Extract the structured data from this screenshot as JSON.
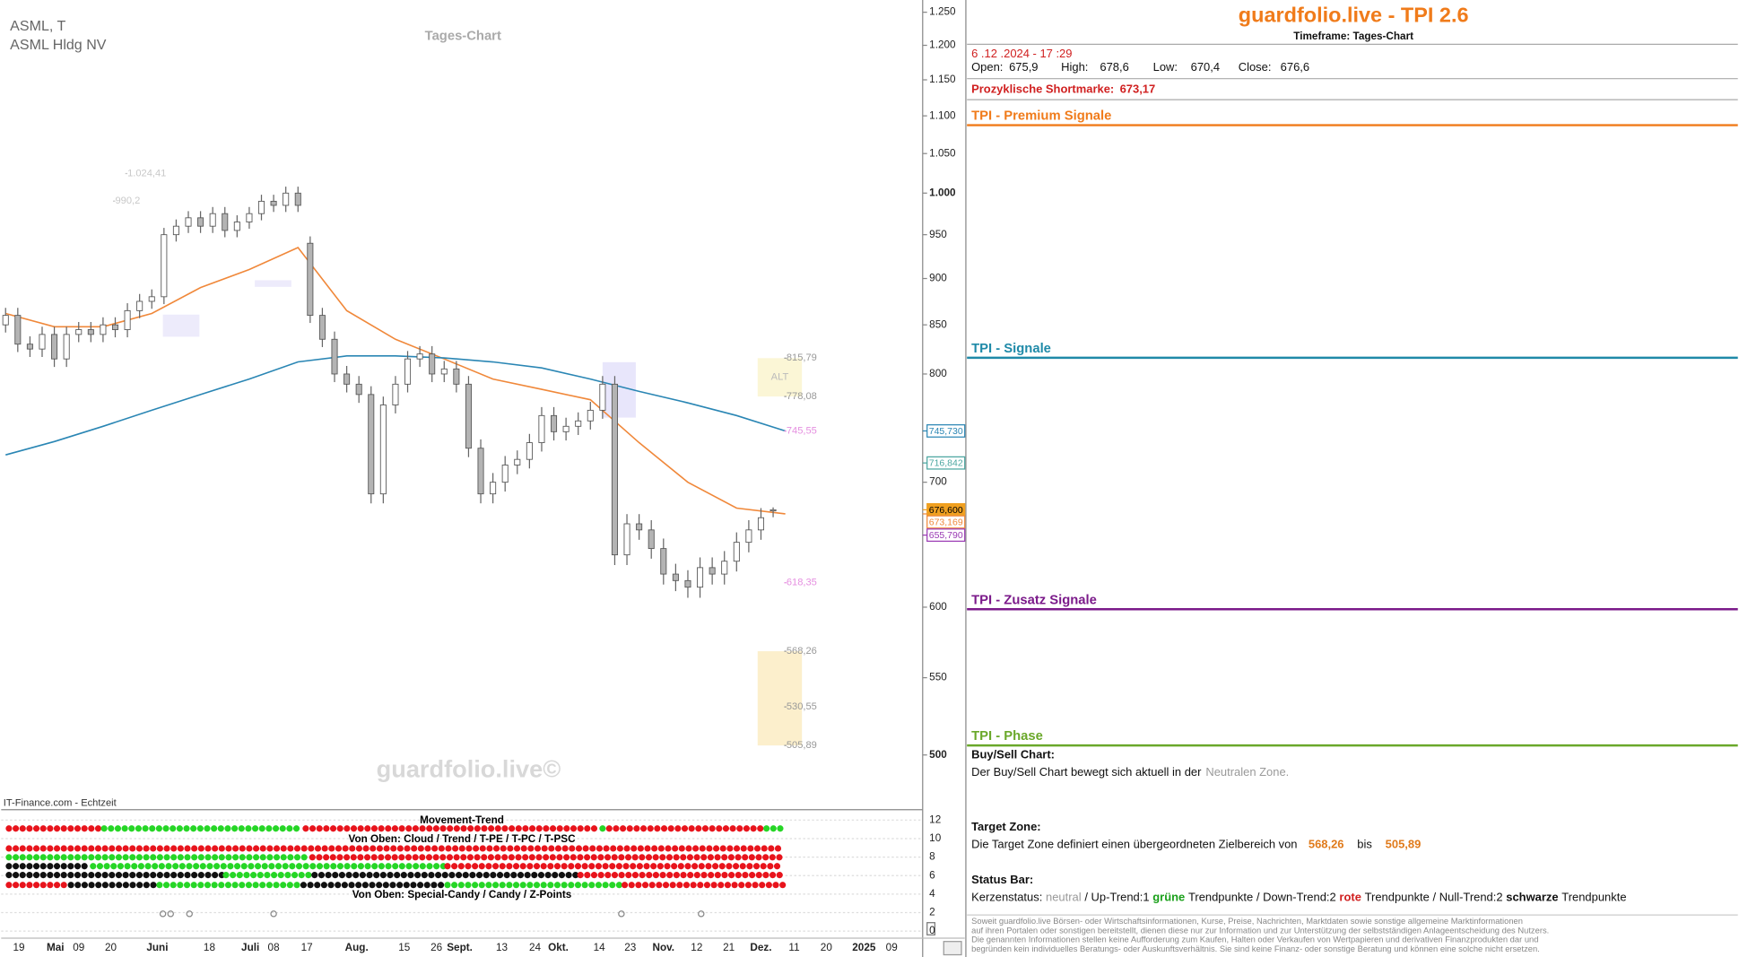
{
  "chart_data": [
    {
      "type": "candlestick",
      "symbol": "ASML, T",
      "name": "ASML Hldg NV",
      "timeframe": "Tages-Chart",
      "source": "IT-Finance.com - Echtzeit",
      "watermark": "guardfolio.live©",
      "log_scale": true,
      "ylim": [
        468,
        1269
      ],
      "yticks": [
        {
          "value": 1250,
          "label": "1.250"
        },
        {
          "value": 1200,
          "label": "1.200"
        },
        {
          "value": 1150,
          "label": "1.150"
        },
        {
          "value": 1100,
          "label": "1.100"
        },
        {
          "value": 1050,
          "label": "1.050"
        },
        {
          "value": 1000,
          "label": "1.000"
        },
        950,
        900,
        850,
        800,
        700,
        600,
        550,
        500
      ],
      "x_labels": [
        "19",
        "Mai",
        "09",
        "20",
        "Juni",
        "18",
        "Juli",
        "08",
        "17",
        "Aug.",
        "15",
        "26",
        "Sept.",
        "13",
        "24",
        "Okt.",
        "14",
        "23",
        "Nov.",
        "12",
        "21",
        "Dez.",
        "11",
        "20",
        "2025",
        "09"
      ],
      "up_color": "#ffffff",
      "down_color": "#b4b4b4",
      "open": [
        850,
        860,
        830,
        825,
        840,
        815,
        840,
        845,
        840,
        850,
        845,
        865,
        875,
        880,
        950,
        960,
        970,
        960,
        975,
        955,
        965,
        975,
        990,
        985,
        1000,
        940,
        860,
        835,
        800,
        790,
        780,
        690,
        770,
        790,
        815,
        820,
        800,
        805,
        790,
        730,
        690,
        700,
        715,
        720,
        735,
        760,
        745,
        750,
        755,
        765,
        790,
        640,
        665,
        660,
        645,
        625,
        620,
        615,
        630,
        625,
        635,
        650,
        660,
        675.9
      ],
      "high": [
        868,
        868,
        838,
        848,
        848,
        848,
        853,
        853,
        858,
        858,
        873,
        883,
        888,
        958,
        968,
        978,
        978,
        983,
        983,
        973,
        983,
        998,
        998,
        1008,
        1008,
        948,
        868,
        843,
        808,
        798,
        788,
        778,
        798,
        823,
        828,
        828,
        813,
        813,
        798,
        738,
        708,
        723,
        728,
        743,
        768,
        768,
        758,
        763,
        773,
        798,
        798,
        673,
        673,
        668,
        653,
        633,
        628,
        638,
        638,
        643,
        658,
        668,
        678,
        678.6
      ],
      "low": [
        842,
        822,
        817,
        817,
        807,
        807,
        832,
        832,
        832,
        837,
        837,
        857,
        867,
        872,
        942,
        952,
        952,
        952,
        947,
        947,
        957,
        967,
        977,
        977,
        977,
        852,
        827,
        792,
        782,
        772,
        682,
        682,
        762,
        782,
        807,
        792,
        792,
        782,
        722,
        682,
        682,
        692,
        707,
        712,
        727,
        737,
        737,
        742,
        747,
        757,
        632,
        632,
        652,
        637,
        617,
        612,
        607,
        607,
        617,
        617,
        627,
        642,
        652,
        670.4
      ],
      "close": [
        860,
        830,
        825,
        840,
        815,
        840,
        845,
        840,
        850,
        845,
        865,
        875,
        880,
        950,
        960,
        970,
        960,
        975,
        955,
        965,
        975,
        990,
        985,
        1000,
        985,
        860,
        835,
        800,
        790,
        780,
        690,
        770,
        790,
        815,
        820,
        800,
        805,
        790,
        730,
        690,
        700,
        715,
        720,
        735,
        760,
        745,
        750,
        755,
        765,
        790,
        640,
        665,
        660,
        645,
        625,
        620,
        615,
        630,
        625,
        635,
        650,
        660,
        670,
        676.6
      ],
      "lines": [
        {
          "color": "#f0883a",
          "values": [
            862,
            848,
            848,
            862,
            890,
            910,
            935,
            865,
            835,
            815,
            795,
            785,
            775,
            735,
            700,
            678,
            673.169
          ]
        },
        {
          "color": "#2a86b4",
          "values": [
            724,
            736,
            750,
            765,
            780,
            795,
            812,
            818,
            818,
            816,
            812,
            806,
            795,
            783,
            772,
            760,
            745.73
          ]
        }
      ],
      "levels": [
        {
          "value": 1024.41,
          "label": "1.024,41",
          "color": "#c8c8c8"
        },
        {
          "value": 990.2,
          "label": "990,2",
          "color": "#c8c8c8"
        },
        {
          "value": 815.79,
          "label": "815,79",
          "color": "#999999"
        },
        {
          "value": 778.08,
          "label": "778,08",
          "color": "#999999"
        },
        {
          "value": 745.55,
          "label": "745,55",
          "color": "#e58fe0"
        },
        {
          "value": 618.35,
          "label": "618,35",
          "color": "#e58fe0"
        },
        {
          "value": 568.26,
          "label": "568,26",
          "color": "#999999"
        },
        {
          "value": 530.55,
          "label": "530,55",
          "color": "#999999"
        },
        {
          "value": 505.89,
          "label": "505,89",
          "color": "#999999"
        }
      ],
      "zones": [
        {
          "label": "ALT",
          "from": 815.79,
          "to": 778.08,
          "color": "#fbf6d6"
        },
        {
          "from": 568.26,
          "to": 505.89,
          "color": "#fcefcc"
        }
      ],
      "price_tags": [
        {
          "value": 745.73,
          "label": "745,730",
          "color": "#2a86b4"
        },
        {
          "value": 716.842,
          "label": "716,842",
          "color": "#4aa6a0"
        },
        {
          "value": 676.6,
          "label": "676,600",
          "color": "#f0a020"
        },
        {
          "value": 673.169,
          "label": "673,169",
          "color": "#f0883a"
        },
        {
          "value": 655.79,
          "label": "655,790",
          "color": "#9a3ab4"
        }
      ]
    },
    {
      "type": "indicator",
      "title": "Movement-Trend",
      "labels": [
        "Von Oben: Cloud / Trend / T-PE / T-PC / T-PSC",
        "Von Oben: Special-Candy / Candy / Z-Points"
      ],
      "ylim": [
        -1,
        13
      ],
      "yticks": [
        12,
        10,
        8,
        6,
        4,
        2,
        0
      ]
    }
  ],
  "panel": {
    "title": "guardfolio.live - TPI 2.6",
    "timeframe": "Timeframe: Tages-Chart",
    "datetime": "6 .12 .2024 - 17 :29",
    "ohlc": [
      [
        "Open:",
        "675,9"
      ],
      [
        "High:",
        "678,6"
      ],
      [
        "Low:",
        "670,4"
      ],
      [
        "Close:",
        "676,6"
      ]
    ],
    "shortmark": {
      "label": "Prozyklische Shortmarke:",
      "value": "673,17"
    },
    "sections": [
      {
        "title": "TPI - Premium Signale",
        "color": "#f07b1a"
      },
      {
        "title": "TPI - Signale",
        "color": "#1f8aa8"
      },
      {
        "title": "TPI - Zusatz Signale",
        "color": "#7b1a8a"
      },
      {
        "title": "TPI - Phase",
        "color": "#6aa82a"
      }
    ],
    "buysell": {
      "title": "Buy/Sell Chart:",
      "text": "Der Buy/Sell Chart bewegt sich aktuell in der",
      "zone": "Neutralen Zone."
    },
    "target": {
      "title": "Target Zone:",
      "text": "Die Target Zone definiert einen übergeordneten Zielbereich von",
      "from": "568,26",
      "sep": "bis",
      "to": "505,89"
    },
    "status": {
      "title": "Status Bar:",
      "parts": [
        "Kerzenstatus:",
        "neutral",
        "/ Up-Trend:1",
        "grüne",
        "Trendpunkte",
        "/ Down-Trend:2",
        "rote",
        "Trendpunkte",
        "/ Null-Trend:2",
        "schwarze",
        "Trendpunkte"
      ]
    },
    "disclaimer": [
      "Soweit guardfolio.live Börsen- oder Wirtschaftsinformationen, Kurse, Preise, Nachrichten, Marktdaten sowie sonstige allgemeine Marktinformationen",
      "auf ihren Portalen oder sonstigen bereitstellt, dienen diese nur zur Information und zur Unterstützung der selbstständigen Anlageentscheidung des Nutzers.",
      "Die genannten Informationen stellen keine Aufforderung zum Kaufen, Halten oder Verkaufen von Wertpapieren und derivativen Finanzprodukten dar und",
      "begründen kein individuelles Beratungs- oder Auskunftsverhältnis. Sie sind keine Finanz- oder sonstige Beratung und können eine solche nicht ersetzen."
    ]
  }
}
